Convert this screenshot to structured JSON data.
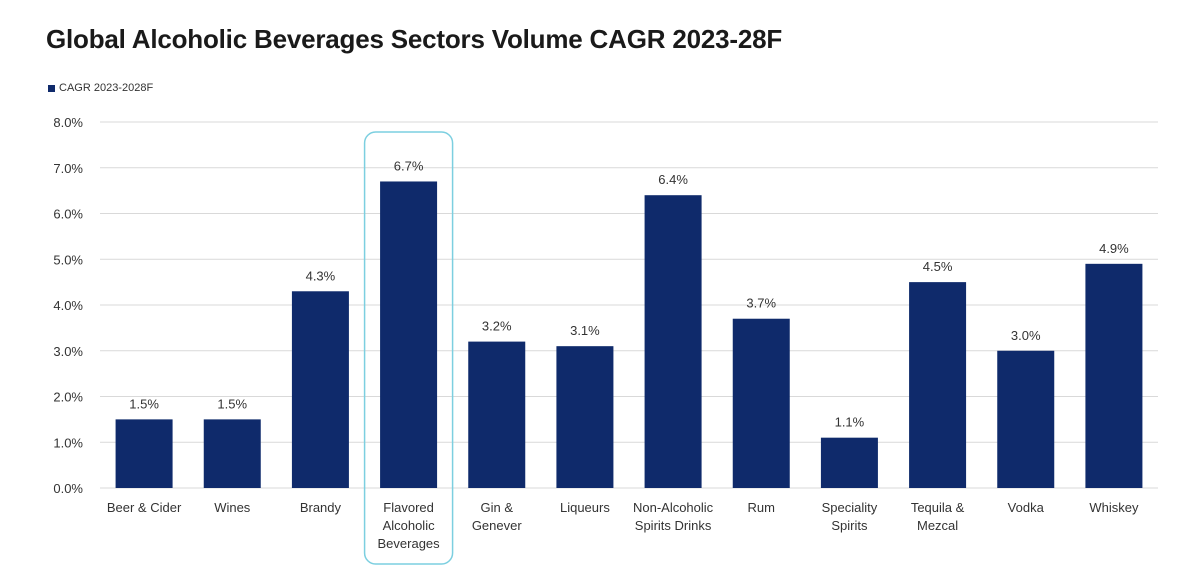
{
  "chart_data": {
    "type": "bar",
    "title": "Global Alcoholic Beverages Sectors Volume CAGR 2023-28F",
    "legend": [
      "CAGR 2023-2028F"
    ],
    "legend_position": "top-left",
    "categories": [
      [
        "Beer & Cider"
      ],
      [
        "Wines"
      ],
      [
        "Brandy"
      ],
      [
        "Flavored",
        "Alcoholic",
        "Beverages"
      ],
      [
        "Gin &",
        "Genever"
      ],
      [
        "Liqueurs"
      ],
      [
        "Non-Alcoholic",
        "Spirits Drinks"
      ],
      [
        "Rum"
      ],
      [
        "Speciality",
        "Spirits"
      ],
      [
        "Tequila &",
        "Mezcal"
      ],
      [
        "Vodka"
      ],
      [
        "Whiskey"
      ]
    ],
    "values": [
      1.5,
      1.5,
      4.3,
      6.7,
      3.2,
      3.1,
      6.4,
      3.7,
      1.1,
      4.5,
      3.0,
      4.9
    ],
    "data_labels": [
      "1.5%",
      "1.5%",
      "4.3%",
      "6.7%",
      "3.2%",
      "3.1%",
      "6.4%",
      "3.7%",
      "1.1%",
      "4.5%",
      "3.0%",
      "4.9%"
    ],
    "highlighted_category_index": 3,
    "yticks": [
      0,
      1,
      2,
      3,
      4,
      5,
      6,
      7,
      8
    ],
    "ytick_labels": [
      "0.0%",
      "1.0%",
      "2.0%",
      "3.0%",
      "4.0%",
      "5.0%",
      "6.0%",
      "7.0%",
      "8.0%"
    ],
    "ylim": [
      0,
      8
    ],
    "xlabel": "",
    "ylabel": "",
    "grid": true
  },
  "colors": {
    "bar": "#0f2a6b",
    "grid": "#d9d9d9",
    "highlight_border": "#7ccfe0"
  }
}
